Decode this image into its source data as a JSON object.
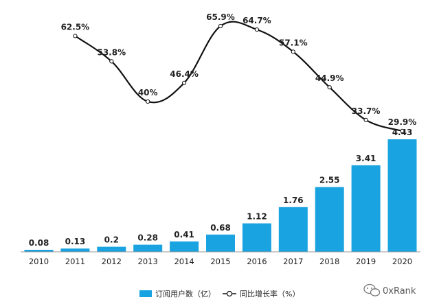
{
  "chart_data": {
    "type": "bar+line",
    "categories": [
      "2010",
      "2011",
      "2012",
      "2013",
      "2014",
      "2015",
      "2016",
      "2017",
      "2018",
      "2019",
      "2020"
    ],
    "series": [
      {
        "name": "订阅用户数（亿）",
        "type": "bar",
        "values": [
          0.08,
          0.13,
          0.2,
          0.28,
          0.41,
          0.68,
          1.12,
          1.76,
          2.55,
          3.41,
          4.43
        ],
        "labels": [
          "0.08",
          "0.13",
          "0.2",
          "0.28",
          "0.41",
          "0.68",
          "1.12",
          "1.76",
          "2.55",
          "3.41",
          "4.43"
        ]
      },
      {
        "name": "同比增长率（%）",
        "type": "line",
        "x": [
          "2011",
          "2012",
          "2013",
          "2014",
          "2015",
          "2016",
          "2017",
          "2018",
          "2019",
          "2020"
        ],
        "values": [
          62.5,
          53.8,
          40,
          46.4,
          65.9,
          64.7,
          57.1,
          44.9,
          33.7,
          29.9
        ],
        "labels": [
          "62.5%",
          "53.8%",
          "40%",
          "46.4%",
          "65.9%",
          "64.7%",
          "57.1%",
          "44.9%",
          "33.7%",
          "29.9%"
        ]
      }
    ],
    "legend": {
      "position": "bottom-center",
      "bar_label": "订阅用户数（亿）",
      "line_label": "同比增长率（%）"
    },
    "grid": false,
    "title": "",
    "xlabel": "",
    "ylabel": "",
    "colors": {
      "bar": "#1aa3e1",
      "line": "#111111",
      "marker_fill": "#ffffff",
      "axis": "#999999",
      "text": "#222222"
    }
  },
  "watermark": {
    "text": "0xRank"
  }
}
